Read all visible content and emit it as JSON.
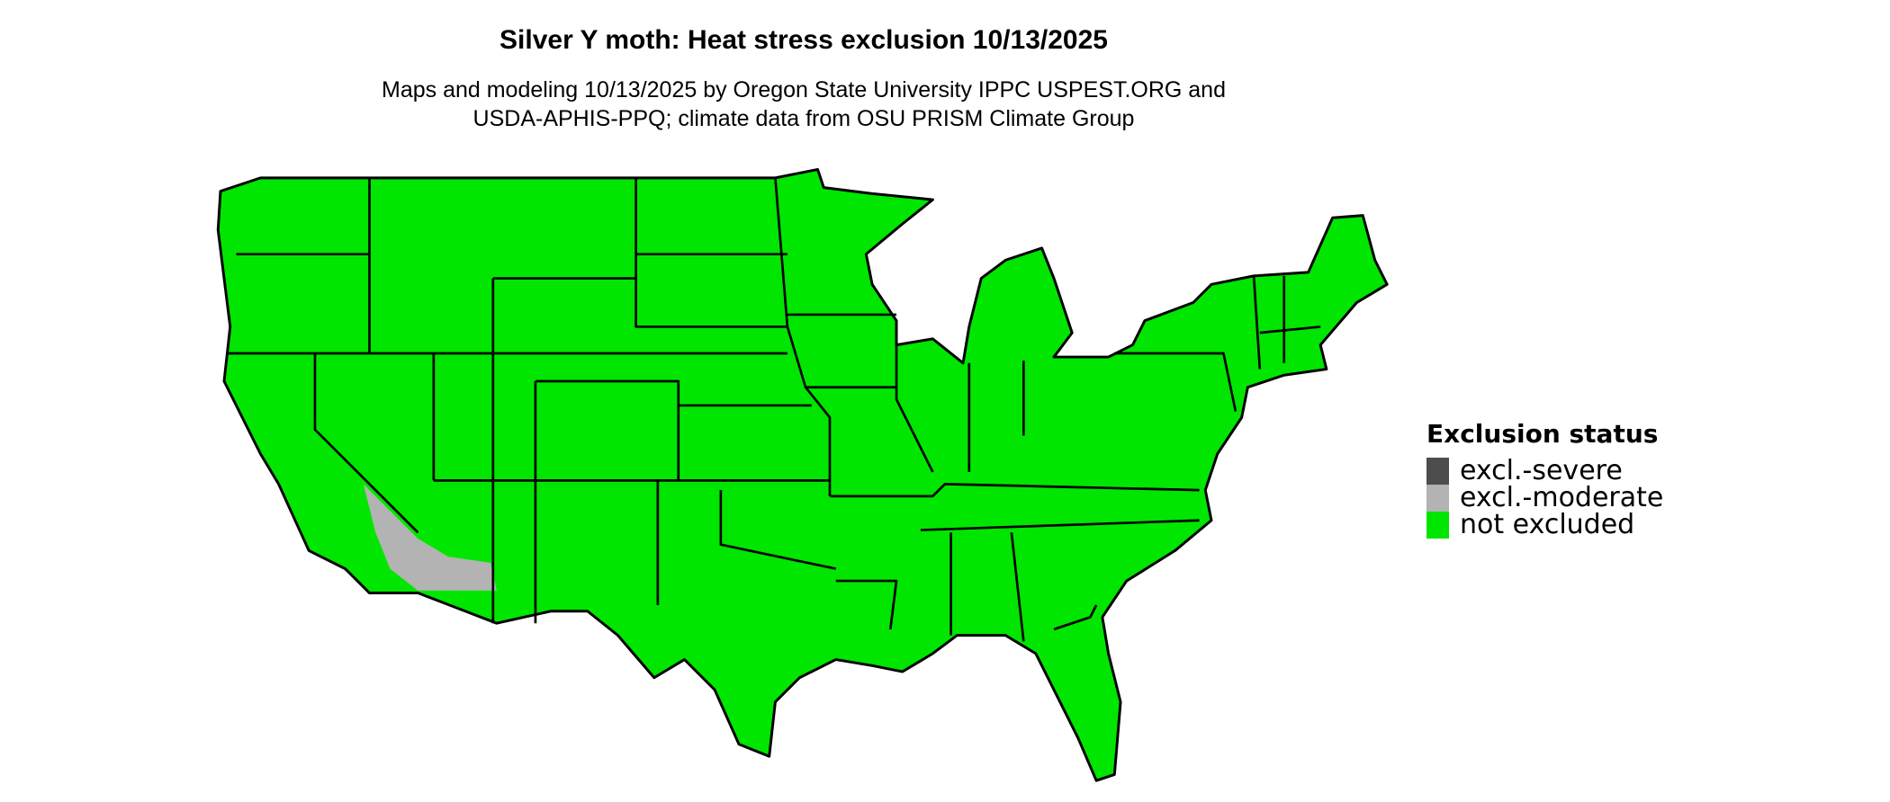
{
  "title": "Silver Y moth: Heat stress exclusion 10/13/2025",
  "subtitle_lines": [
    "Maps and modeling 10/13/2025 by Oregon State University IPPC USPEST.ORG and",
    "USDA-APHIS-PPQ; climate data from OSU PRISM Climate Group"
  ],
  "legend": {
    "title": "Exclusion status",
    "items": [
      {
        "label": "excl.-severe",
        "color": "#4d4d4d"
      },
      {
        "label": "excl.-moderate",
        "color": "#b3b3b3"
      },
      {
        "label": "not excluded",
        "color": "#00e600"
      }
    ]
  },
  "map": {
    "fill_not_excluded": "#00e600",
    "fill_moderate": "#b3b3b3",
    "border_color": "#000000"
  }
}
